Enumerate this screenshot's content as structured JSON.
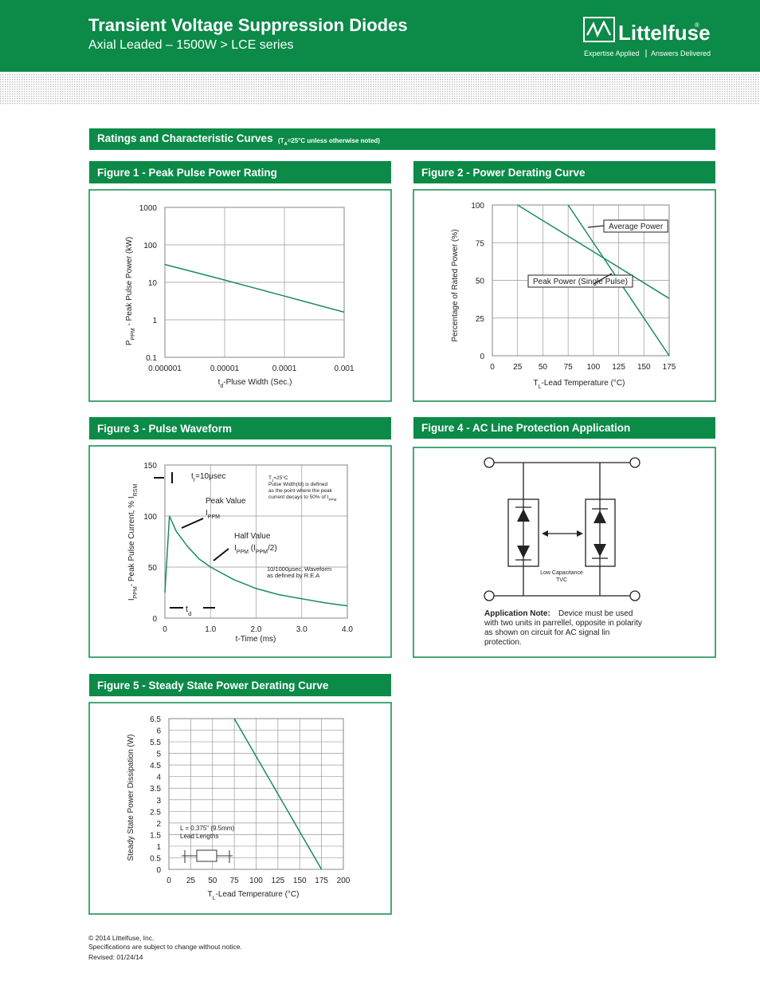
{
  "header": {
    "title": "Transient Voltage Suppression Diodes",
    "subtitle": "Axial Leaded – 1500W  >  LCE series",
    "logo": "Littelfuse",
    "logo_mark": "®",
    "tagline_left": "Expertise Applied",
    "tagline_right": "Answers Delivered"
  },
  "section": {
    "title": "Ratings and Characteristic Curves",
    "note": [
      "(T",
      {
        "sub": "A"
      },
      "=25°C unless otherwise noted)"
    ]
  },
  "chart_data": [
    {
      "type": "line",
      "title": "Figure 1 - Peak Pulse Power Rating",
      "xlog": true,
      "ylog": true,
      "grid": true,
      "xlabel": [
        "t",
        {
          "sub": "d"
        },
        "-Pluse Width (Sec.)"
      ],
      "ylabel": [
        "P",
        {
          "sub": "PPM"
        },
        " - Peak Pulse Power (kW)"
      ],
      "xlim": [
        1e-06,
        0.001
      ],
      "xticks": [
        1e-06,
        1e-05,
        0.0001,
        0.001
      ],
      "ylim": [
        0.1,
        1000
      ],
      "yticks": [
        0.1,
        1,
        10,
        100,
        1000
      ],
      "series": [
        {
          "color": "#1a8c5e",
          "x": [
            1e-06,
            1e-05,
            0.0001,
            0.001
          ],
          "values": [
            30,
            11.5,
            4.3,
            1.6
          ]
        }
      ]
    },
    {
      "type": "line",
      "title": "Figure 2 - Power Derating Curve",
      "grid": true,
      "xlabel": [
        "T",
        {
          "sub": "L"
        },
        "-Lead Temperature (°C)"
      ],
      "ylabel": "Percentage of Rated Power (%)",
      "xlim": [
        0,
        175
      ],
      "xticks": [
        0,
        25,
        50,
        75,
        100,
        125,
        150,
        175
      ],
      "ylim": [
        0,
        100
      ],
      "yticks": [
        0,
        25,
        50,
        75,
        100
      ],
      "series": [
        {
          "name": "Average Power",
          "color": "#1a8c5e",
          "x": [
            75,
            175
          ],
          "values": [
            100,
            0
          ]
        },
        {
          "name": "Peak Power (Single Pulse)",
          "color": "#1a8c5e",
          "x": [
            25,
            175
          ],
          "values": [
            100,
            38
          ]
        }
      ]
    },
    {
      "type": "line",
      "title": "Figure 3 - Pulse Waveform",
      "grid": true,
      "xlabel": "t-Time (ms)",
      "ylabel": [
        "I",
        {
          "sub": "PPM"
        },
        "- Peak Pulse Current, % I",
        {
          "sub": "RSM"
        }
      ],
      "xlim": [
        0,
        4
      ],
      "xticks": [
        0,
        {
          "value": 1,
          "label": "1.0"
        },
        {
          "value": 2,
          "label": "2.0"
        },
        {
          "value": 3,
          "label": "3.0"
        },
        {
          "value": 4,
          "label": "4.0"
        }
      ],
      "ylim": [
        0,
        150
      ],
      "yticks": [
        0,
        50,
        100,
        150
      ],
      "series": [
        {
          "color": "#1a8c5e",
          "x": [
            0,
            0.1,
            0.25,
            0.5,
            0.75,
            1,
            1.5,
            2,
            2.5,
            3,
            3.5,
            4
          ],
          "values": [
            25,
            100,
            85,
            70,
            58,
            50,
            38,
            29,
            23,
            19,
            15,
            12
          ]
        }
      ],
      "annotations": [
        [
          "t",
          {
            "sub": "r"
          },
          "=10μsec"
        ],
        "Peak Value",
        [
          "I",
          {
            "sub": "PPM"
          }
        ],
        "Half Value",
        [
          "I",
          {
            "sub": "PPM"
          },
          " (I",
          {
            "sub": "PPM"
          },
          "/2)"
        ],
        [
          "T",
          {
            "sub": "J"
          },
          "=25°C"
        ],
        "Pulse Width(td) is defined",
        "as the point where the peak",
        [
          "current decays to 50% of I",
          {
            "sub": "PPM"
          }
        ],
        "10/1000μsec. Waveform",
        "as defined by R.E.A",
        [
          "t",
          {
            "sub": "d"
          }
        ]
      ]
    },
    {
      "type": "line",
      "title": "Figure 5 - Steady State Power Derating Curve",
      "grid": true,
      "xlabel": [
        "T",
        {
          "sub": "L"
        },
        "-Lead Temperature (°C)"
      ],
      "ylabel": "Steady State Power Dissipation (W)",
      "xlim": [
        0,
        200
      ],
      "xticks": [
        0,
        25,
        50,
        75,
        100,
        125,
        150,
        175,
        200
      ],
      "ylim": [
        0,
        6.5
      ],
      "yticks": [
        0,
        0.5,
        1,
        1.5,
        2,
        2.5,
        3,
        3.5,
        4,
        4.5,
        5,
        5.5,
        6,
        6.5
      ],
      "series": [
        {
          "color": "#1a8c5e",
          "x": [
            75,
            175
          ],
          "values": [
            6.5,
            0
          ]
        }
      ],
      "annotations": [
        "L = 0.375\" (9.5mm)",
        "Lead Lengths"
      ]
    }
  ],
  "figure4": {
    "title": "Figure 4 - AC Line Protection Application",
    "device_label": [
      "Low Capacitance",
      "TVC"
    ],
    "note_label": "Application Note:",
    "note_lines": [
      "Device must be used",
      "with two units in parrellel, opposite in polarity",
      "as shown on circuit for AC signal lin",
      "protection."
    ]
  },
  "footer": [
    "© 2014 Littelfuse, Inc.",
    "Specifications are subject to change without notice.",
    "Revised: 01/24/14"
  ]
}
